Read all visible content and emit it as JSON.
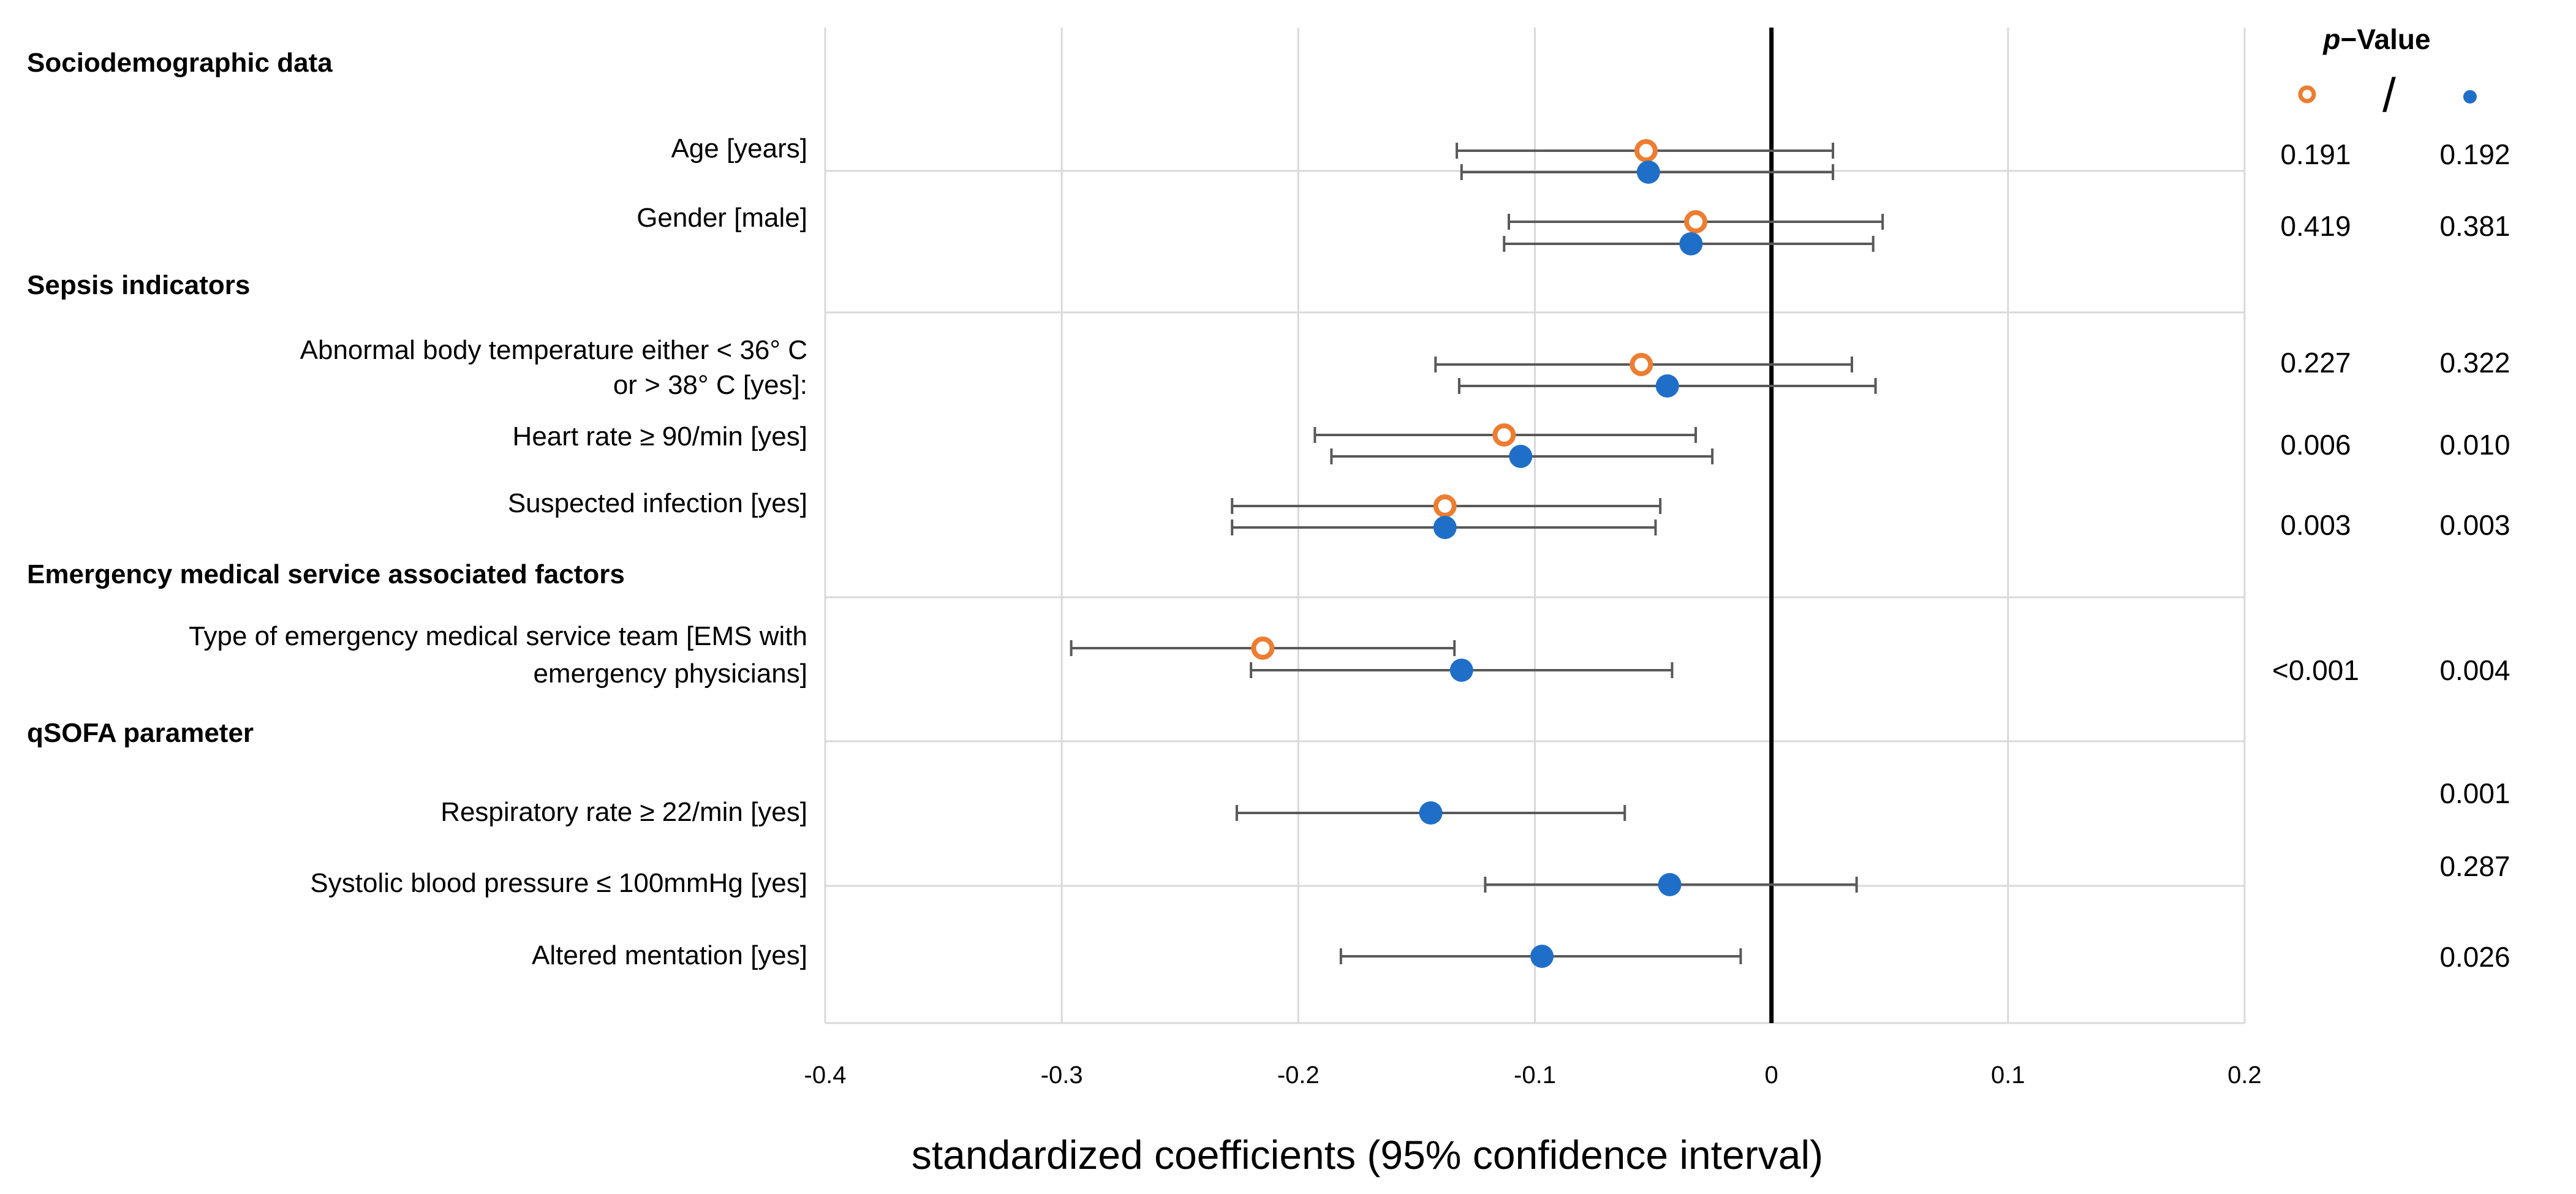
{
  "chart_data": {
    "type": "forest",
    "xlabel": "standardized coefficients (95% confidence interval)",
    "xlim": [
      -0.4,
      0.2
    ],
    "x_ticks": [
      "-0.4",
      "-0.3",
      "-0.2",
      "-0.1",
      "0",
      "0.1",
      "0.2"
    ],
    "reference_line": 0,
    "grid": true,
    "legend": {
      "title_italic": "p",
      "title_rest": "−Value",
      "separator": "/",
      "open_marker": "o",
      "filled_marker": "•",
      "open_color": "#ED7D31",
      "filled_color": "#1F6FC8"
    },
    "sections": [
      {
        "title": "Sociodemographic data"
      },
      {
        "title": "Sepsis indicators"
      },
      {
        "title": "Emergency medical service associated factors"
      },
      {
        "title": "qSOFA parameter"
      }
    ],
    "rows": [
      {
        "lines": [
          "Age [years]"
        ],
        "open": {
          "est": -0.053,
          "lo": -0.133,
          "hi": 0.026,
          "p": "0.191"
        },
        "filled": {
          "est": -0.052,
          "lo": -0.131,
          "hi": 0.026,
          "p": "0.192"
        }
      },
      {
        "lines": [
          "Gender [male]"
        ],
        "open": {
          "est": -0.032,
          "lo": -0.111,
          "hi": 0.047,
          "p": "0.419"
        },
        "filled": {
          "est": -0.034,
          "lo": -0.113,
          "hi": 0.043,
          "p": "0.381"
        }
      },
      {
        "lines": [
          "Abnormal body temperature either < 36° C",
          "or > 38° C [yes]:"
        ],
        "open": {
          "est": -0.055,
          "lo": -0.142,
          "hi": 0.034,
          "p": "0.227"
        },
        "filled": {
          "est": -0.044,
          "lo": -0.132,
          "hi": 0.044,
          "p": "0.322"
        }
      },
      {
        "lines": [
          "Heart rate ≥ 90/min [yes]"
        ],
        "open": {
          "est": -0.113,
          "lo": -0.193,
          "hi": -0.032,
          "p": "0.006"
        },
        "filled": {
          "est": -0.106,
          "lo": -0.186,
          "hi": -0.025,
          "p": "0.010"
        }
      },
      {
        "lines": [
          "Suspected infection [yes]"
        ],
        "open": {
          "est": -0.138,
          "lo": -0.228,
          "hi": -0.047,
          "p": "0.003"
        },
        "filled": {
          "est": -0.138,
          "lo": -0.228,
          "hi": -0.049,
          "p": "0.003"
        }
      },
      {
        "lines": [
          "Type of emergency medical service team [EMS with",
          "emergency physicians]"
        ],
        "open": {
          "est": -0.215,
          "lo": -0.296,
          "hi": -0.134,
          "p": "<0.001"
        },
        "filled": {
          "est": -0.131,
          "lo": -0.22,
          "hi": -0.042,
          "p": "0.004"
        }
      },
      {
        "lines": [
          "Respiratory rate ≥ 22/min [yes]"
        ],
        "open": null,
        "filled": {
          "est": -0.144,
          "lo": -0.226,
          "hi": -0.062,
          "p": "0.001"
        }
      },
      {
        "lines": [
          "Systolic blood pressure ≤ 100mmHg [yes]"
        ],
        "open": null,
        "filled": {
          "est": -0.043,
          "lo": -0.121,
          "hi": 0.036,
          "p": "0.287"
        }
      },
      {
        "lines": [
          "Altered mentation [yes]"
        ],
        "open": null,
        "filled": {
          "est": -0.097,
          "lo": -0.182,
          "hi": -0.013,
          "p": "0.026"
        }
      }
    ]
  }
}
